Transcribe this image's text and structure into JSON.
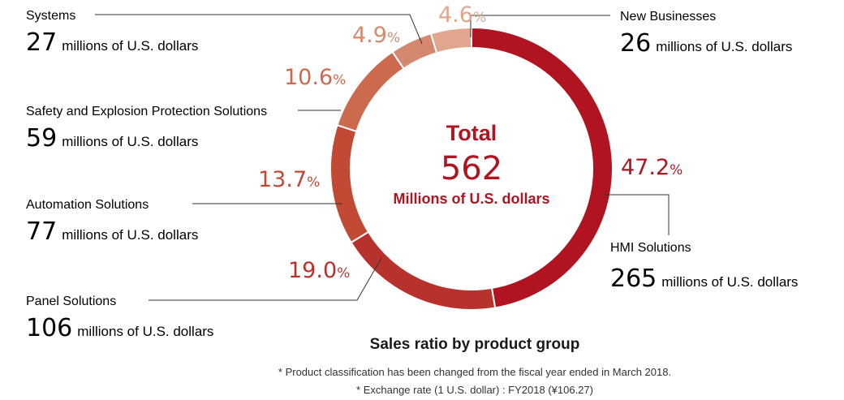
{
  "chart_data": {
    "type": "pie",
    "total_label": "Total",
    "total_value": "562",
    "total_unit": "Millions of U.S. dollars",
    "unit": "millions of U.S. dollars",
    "title": "Sales ratio by product group",
    "notes": [
      "* Product classification has been changed from the fiscal year ended in March 2018.",
      "* Exchange rate (1 U.S. dollar) : FY2018 (¥106.27)"
    ],
    "slices": [
      {
        "label": "HMI Solutions",
        "value": 265,
        "value_text": "265",
        "percent": 47.2,
        "percent_text": "47.2",
        "color": "#b01420"
      },
      {
        "label": "Panel Solutions",
        "value": 106,
        "value_text": "106",
        "percent": 19.0,
        "percent_text": "19.0",
        "color": "#b7322c"
      },
      {
        "label": "Automation Solutions",
        "value": 77,
        "value_text": "77",
        "percent": 13.7,
        "percent_text": "13.7",
        "color": "#c24a35"
      },
      {
        "label": "Safety and Explosion Protection Solutions",
        "value": 59,
        "value_text": "59",
        "percent": 10.6,
        "percent_text": "10.6",
        "color": "#cc6a4f"
      },
      {
        "label": "Systems",
        "value": 27,
        "value_text": "27",
        "percent": 4.9,
        "percent_text": "4.9",
        "color": "#d4896e"
      },
      {
        "label": "New Businesses",
        "value": 26,
        "value_text": "26",
        "percent": 4.6,
        "percent_text": "4.6",
        "color": "#e0a78e"
      }
    ]
  }
}
